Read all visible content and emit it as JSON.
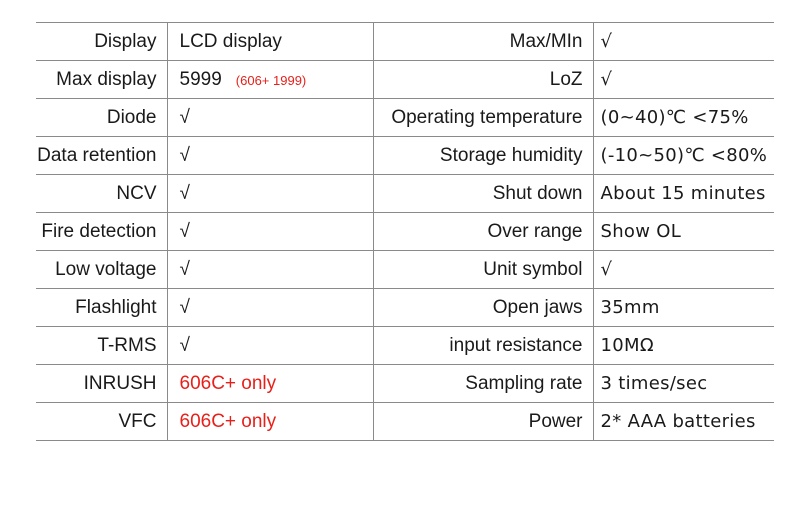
{
  "table": {
    "rows": [
      {
        "left_label": "Display",
        "left_value": "LCD display",
        "right_label": "Max/MIn",
        "right_value": "√"
      },
      {
        "left_label": "Max display",
        "left_value": "5999",
        "left_note": "(606+  1999)",
        "right_label": "LoZ",
        "right_value": "√"
      },
      {
        "left_label": "Diode",
        "left_value": "√",
        "right_label": "Operating temperature",
        "right_value": "(0~40)℃ <75%"
      },
      {
        "left_label": "Data retention",
        "left_value": "√",
        "right_label": "Storage humidity",
        "right_value": "(-10~50)℃ <80%"
      },
      {
        "left_label": "NCV",
        "left_value": "√",
        "right_label": "Shut down",
        "right_value": "About 15 minutes"
      },
      {
        "left_label": "Fire detection",
        "left_value": "√",
        "right_label": "Over range",
        "right_value": "Show OL"
      },
      {
        "left_label": "Low voltage",
        "left_value": "√",
        "right_label": "Unit symbol",
        "right_value": "√"
      },
      {
        "left_label": "Flashlight",
        "left_value": "√",
        "right_label": "Open jaws",
        "right_value": "35mm"
      },
      {
        "left_label": "T-RMS",
        "left_value": "√",
        "right_label": "input resistance",
        "right_value": "10MΩ"
      },
      {
        "left_label": "INRUSH",
        "left_value": "606C+ only",
        "right_label": "Sampling rate",
        "right_value": "3 times/sec"
      },
      {
        "left_label": "VFC",
        "left_value": "606C+ only",
        "right_label": "Power",
        "right_value": "2* AAA batteries"
      }
    ]
  }
}
